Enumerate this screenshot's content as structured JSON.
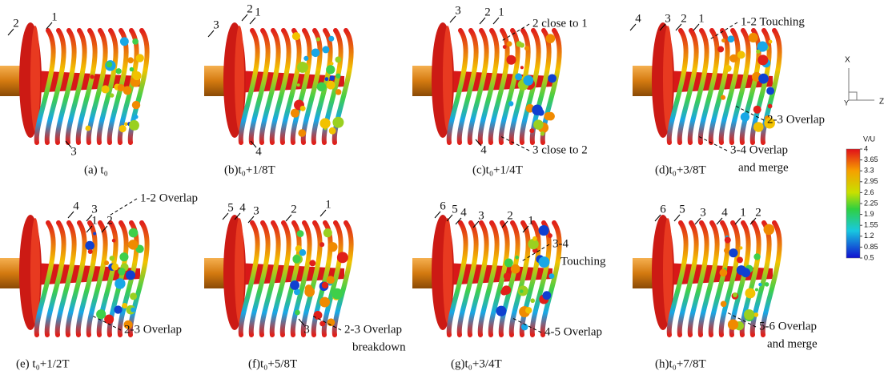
{
  "panels": [
    {
      "caption": "(a) t₀",
      "labels": [
        "2",
        "1",
        "3"
      ],
      "annotations": []
    },
    {
      "caption": "(b)t₀+1/8T",
      "labels": [
        "3",
        "2",
        "1",
        "4"
      ],
      "annotations": []
    },
    {
      "caption": "(c)t₀+1/4T",
      "labels": [
        "3",
        "2",
        "1",
        "4"
      ],
      "annotations": [
        {
          "lines": [
            "2 close to 1"
          ]
        },
        {
          "lines": [
            "3 close to 2"
          ]
        }
      ]
    },
    {
      "caption": "(d)t₀+3/8T",
      "labels": [
        "4",
        "3",
        "2",
        "1"
      ],
      "annotations": [
        {
          "lines": [
            "1-2 Touching"
          ]
        },
        {
          "lines": [
            "2-3 Overlap"
          ]
        },
        {
          "lines": [
            "3-4 Overlap",
            "and merge"
          ]
        }
      ]
    },
    {
      "caption": "(e) t₀+1/2T",
      "labels": [
        "4",
        "3",
        "1",
        "2"
      ],
      "annotations": [
        {
          "lines": [
            "1-2 Overlap"
          ]
        },
        {
          "lines": [
            "2-3 Overlap"
          ]
        }
      ]
    },
    {
      "caption": "(f)t₀+5/8T",
      "labels": [
        "5",
        "4",
        "3",
        "2",
        "1",
        "3"
      ],
      "annotations": [
        {
          "lines": [
            "2-3 Overlap",
            "breakdown"
          ]
        }
      ]
    },
    {
      "caption": "(g)t₀+3/4T",
      "labels": [
        "6",
        "5",
        "4",
        "3",
        "2",
        "1"
      ],
      "annotations": [
        {
          "lines": [
            "3-4",
            "Touching"
          ]
        },
        {
          "lines": [
            "4-5 Overlap"
          ]
        }
      ]
    },
    {
      "caption": "(h)t₀+7/8T",
      "labels": [
        "6",
        "5",
        "3",
        "4",
        "1",
        "2"
      ],
      "annotations": [
        {
          "lines": [
            "5-6 Overlap",
            "and merge"
          ]
        }
      ]
    }
  ],
  "axes": {
    "x": "X",
    "y": "Y",
    "z": "Z"
  },
  "colorbar": {
    "title": "V/U",
    "ticks": [
      4,
      3.65,
      3.3,
      2.95,
      2.6,
      2.25,
      1.9,
      1.55,
      1.2,
      0.85,
      0.5
    ]
  }
}
